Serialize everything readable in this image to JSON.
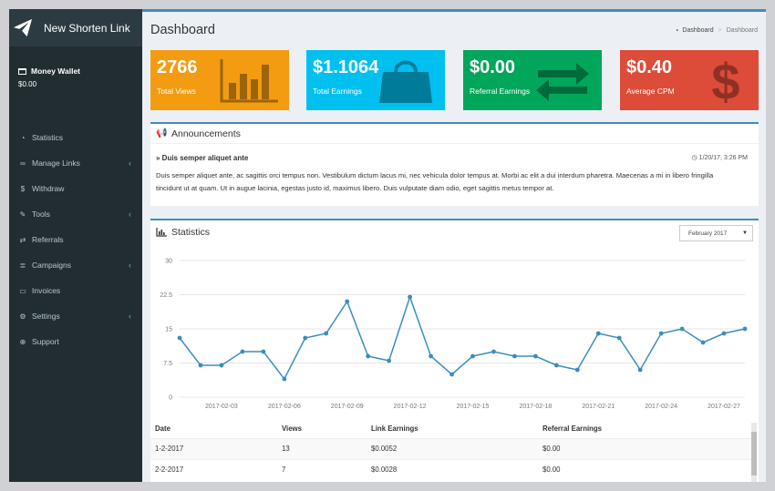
{
  "sidebar": {
    "new_link_label": "New Shorten Link",
    "wallet": {
      "title": "Money Wallet",
      "value": "$0.00"
    },
    "items": [
      {
        "label": "Statistics",
        "icon": "dashboard-icon",
        "has_children": false
      },
      {
        "label": "Manage Links",
        "icon": "link-icon",
        "has_children": true
      },
      {
        "label": "Withdraw",
        "icon": "dollar-icon",
        "has_children": false
      },
      {
        "label": "Tools",
        "icon": "wrench-icon",
        "has_children": true
      },
      {
        "label": "Referrals",
        "icon": "exchange-icon",
        "has_children": false
      },
      {
        "label": "Campaigns",
        "icon": "database-icon",
        "has_children": true
      },
      {
        "label": "Invoices",
        "icon": "credit-card-icon",
        "has_children": false
      },
      {
        "label": "Settings",
        "icon": "cogs-icon",
        "has_children": true
      },
      {
        "label": "Support",
        "icon": "life-ring-icon",
        "has_children": false
      }
    ]
  },
  "header": {
    "title": "Dashboard",
    "breadcrumb": {
      "home": "Dashboard",
      "current": "Dashboard"
    }
  },
  "stat_boxes": [
    {
      "value": "2766",
      "label": "Total Views",
      "color": "#f39c12",
      "icon": "bar-chart-icon"
    },
    {
      "value": "$1.1064",
      "label": "Total Earnings",
      "color": "#00c0ef",
      "icon": "shopping-bag-icon"
    },
    {
      "value": "$0.00",
      "label": "Referral Earnings",
      "color": "#00a65a",
      "icon": "exchange-icon"
    },
    {
      "value": "$0.40",
      "label": "Average CPM",
      "color": "#dd4b39",
      "icon": "dollar-icon"
    }
  ],
  "announcements": {
    "title": "Announcements",
    "item_title": "Duis semper aliquet ante",
    "item_date": "1/20/17, 3:26 PM",
    "item_body": "Duis semper aliquet ante, ac sagittis orci tempus non. Vestibulum dictum lacus mi, nec vehicula dolor tempus at. Morbi ac elit a dui interdum pharetra. Maecenas a mi in libero fringilla tincidunt ut at quam. Ut in augue lacinia, egestas justo id, maximus libero. Duis vulputate diam odio, eget sagittis metus tempor at."
  },
  "statistics": {
    "title": "Statistics",
    "month_selected": "February 2017",
    "table": {
      "headers": [
        "Date",
        "Views",
        "Link Earnings",
        "Referral Earnings"
      ],
      "rows": [
        [
          "1-2-2017",
          "13",
          "$0.0052",
          "$0.00"
        ],
        [
          "2-2-2017",
          "7",
          "$0.0028",
          "$0.00"
        ]
      ]
    }
  },
  "chart_data": {
    "type": "line",
    "title": "",
    "xlabel": "",
    "ylabel": "",
    "ylim": [
      0,
      30
    ],
    "yticks": [
      "0",
      "7.5",
      "15",
      "22.5",
      "30"
    ],
    "x": [
      "2017-02-01",
      "2017-02-02",
      "2017-02-03",
      "2017-02-04",
      "2017-02-05",
      "2017-02-06",
      "2017-02-07",
      "2017-02-08",
      "2017-02-09",
      "2017-02-10",
      "2017-02-11",
      "2017-02-12",
      "2017-02-13",
      "2017-02-14",
      "2017-02-15",
      "2017-02-16",
      "2017-02-17",
      "2017-02-18",
      "2017-02-19",
      "2017-02-20",
      "2017-02-21",
      "2017-02-22",
      "2017-02-23",
      "2017-02-24",
      "2017-02-25",
      "2017-02-26",
      "2017-02-27",
      "2017-02-28"
    ],
    "xtick_labels": [
      "2017-02-03",
      "2017-02-06",
      "2017-02-09",
      "2017-02-12",
      "2017-02-15",
      "2017-02-18",
      "2017-02-21",
      "2017-02-24",
      "2017-02-27"
    ],
    "series": [
      {
        "name": "Views",
        "color": "#3c8dbc",
        "values": [
          13,
          7,
          7,
          10,
          10,
          4,
          13,
          14,
          21,
          9,
          8,
          22,
          9,
          5,
          9,
          10,
          9,
          9,
          7,
          6,
          14,
          13,
          6,
          14,
          15,
          12,
          14,
          15
        ]
      }
    ]
  }
}
